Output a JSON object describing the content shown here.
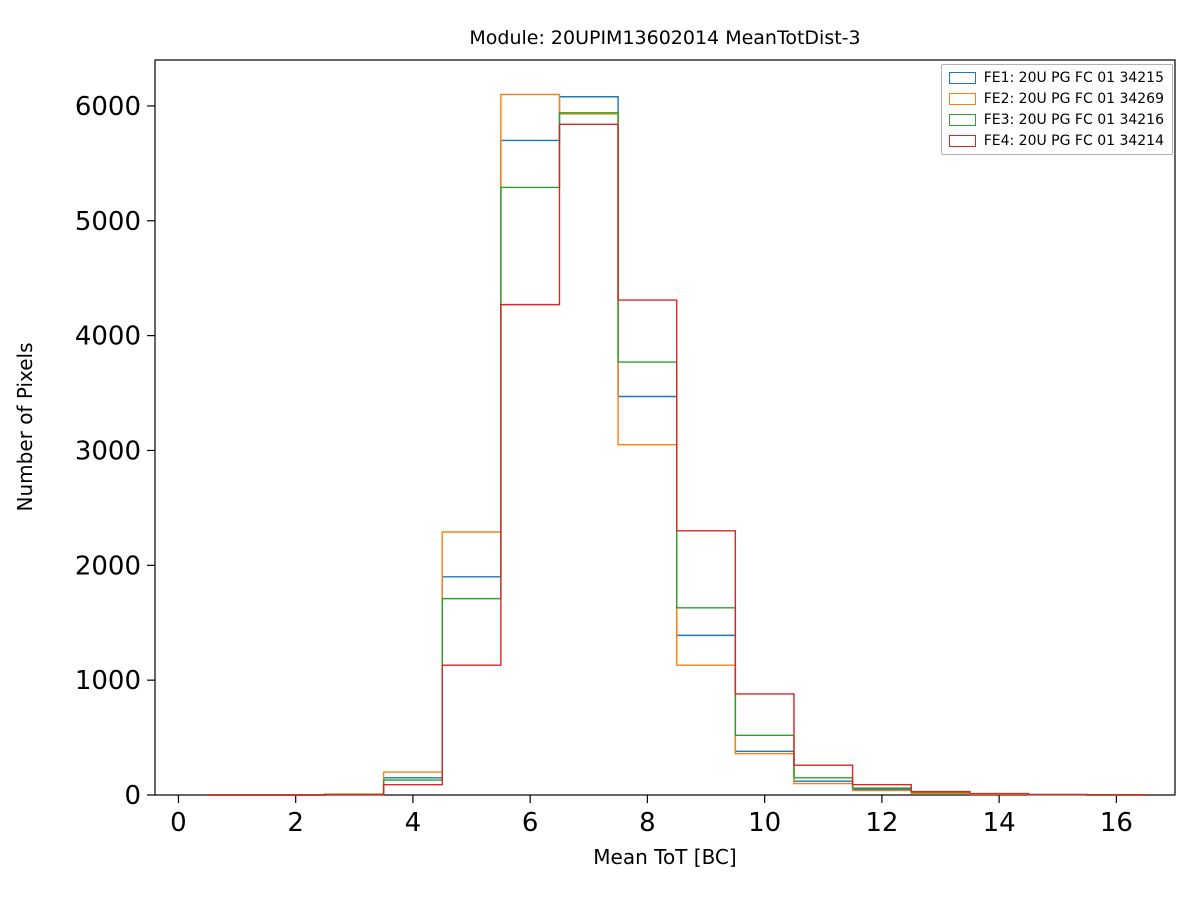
{
  "figure": {
    "title": "Module: 20UPIM13602014 MeanTotDist-3",
    "xlabel": "Mean ToT [BC]",
    "ylabel": "Number of Pixels"
  },
  "chart_data": {
    "type": "histogram-step",
    "title": "Module: 20UPIM13602014 MeanTotDist-3",
    "xlabel": "Mean ToT [BC]",
    "ylabel": "Number of Pixels",
    "xlim": [
      -0.4,
      17.0
    ],
    "ylim": [
      0,
      6400
    ],
    "xticks": [
      0,
      2,
      4,
      6,
      8,
      10,
      12,
      14,
      16
    ],
    "yticks": [
      0,
      1000,
      2000,
      3000,
      4000,
      5000,
      6000
    ],
    "grid": false,
    "legend_position": "upper right",
    "bin_edges": [
      0.5,
      1.5,
      2.5,
      3.5,
      4.5,
      5.5,
      6.5,
      7.5,
      8.5,
      9.5,
      10.5,
      11.5,
      12.5,
      13.5,
      14.5,
      15.5,
      16.5
    ],
    "bin_centers": [
      1,
      2,
      3,
      4,
      5,
      6,
      7,
      8,
      9,
      10,
      11,
      12,
      13,
      14,
      15,
      16
    ],
    "series": [
      {
        "name": "FE1: 20U PG FC 01 34215",
        "color": "#1f77b4",
        "values": [
          0,
          0,
          5,
          150,
          1900,
          5700,
          6080,
          3470,
          1390,
          380,
          120,
          50,
          20,
          8,
          3,
          0
        ]
      },
      {
        "name": "FE2: 20U PG FC 01 34269",
        "color": "#ff7f0e",
        "values": [
          0,
          0,
          8,
          200,
          2290,
          6100,
          5930,
          3050,
          1130,
          360,
          100,
          40,
          15,
          5,
          2,
          0
        ]
      },
      {
        "name": "FE3: 20U PG FC 01 34216",
        "color": "#2ca02c",
        "values": [
          0,
          0,
          5,
          130,
          1710,
          5290,
          5940,
          3770,
          1630,
          520,
          150,
          60,
          25,
          10,
          3,
          0
        ]
      },
      {
        "name": "FE4: 20U PG FC 01 34214",
        "color": "#d62728",
        "values": [
          0,
          0,
          3,
          90,
          1130,
          4270,
          5840,
          4310,
          2300,
          880,
          260,
          90,
          30,
          12,
          5,
          2
        ]
      }
    ]
  }
}
